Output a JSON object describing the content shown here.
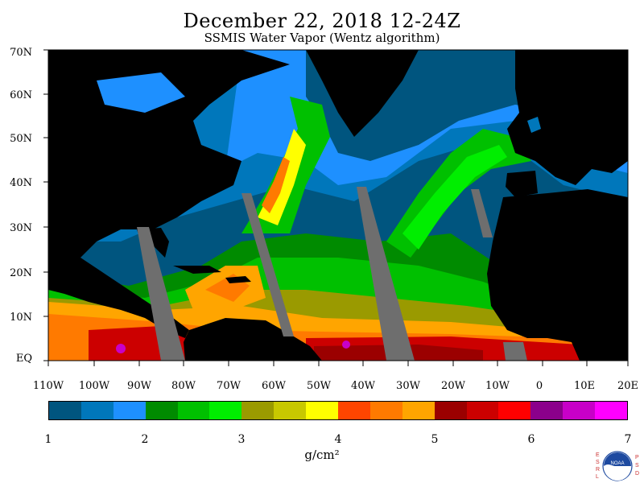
{
  "header": {
    "title": "December 22, 2018 12-24Z",
    "subtitle": "SSMIS Water Vapor (Wentz algorithm)"
  },
  "map": {
    "lat_labels": [
      "70N",
      "60N",
      "50N",
      "40N",
      "30N",
      "20N",
      "10N",
      "EQ"
    ],
    "lon_labels": [
      "110W",
      "100W",
      "90W",
      "80W",
      "70W",
      "60W",
      "50W",
      "40W",
      "30W",
      "20W",
      "10W",
      "0",
      "10E",
      "20E"
    ],
    "land_color": "#000000",
    "no_data_color": "#6e6e6e"
  },
  "colorbar": {
    "colors": [
      "#00557f",
      "#0077bb",
      "#1e90ff",
      "#008b00",
      "#00c000",
      "#00ee00",
      "#9a9a00",
      "#c8c800",
      "#ffff00",
      "#ff4500",
      "#ff7a00",
      "#ffa500",
      "#9b0000",
      "#cc0000",
      "#ff0000",
      "#8b008b",
      "#c800c8",
      "#ff00ff"
    ],
    "tick_labels": [
      "1",
      "2",
      "3",
      "4",
      "5",
      "6",
      "7"
    ],
    "units": "g/cm²"
  },
  "logo": {
    "left_letters": "ESRL",
    "right_letters": "PSD",
    "center_text": "NOAA"
  }
}
